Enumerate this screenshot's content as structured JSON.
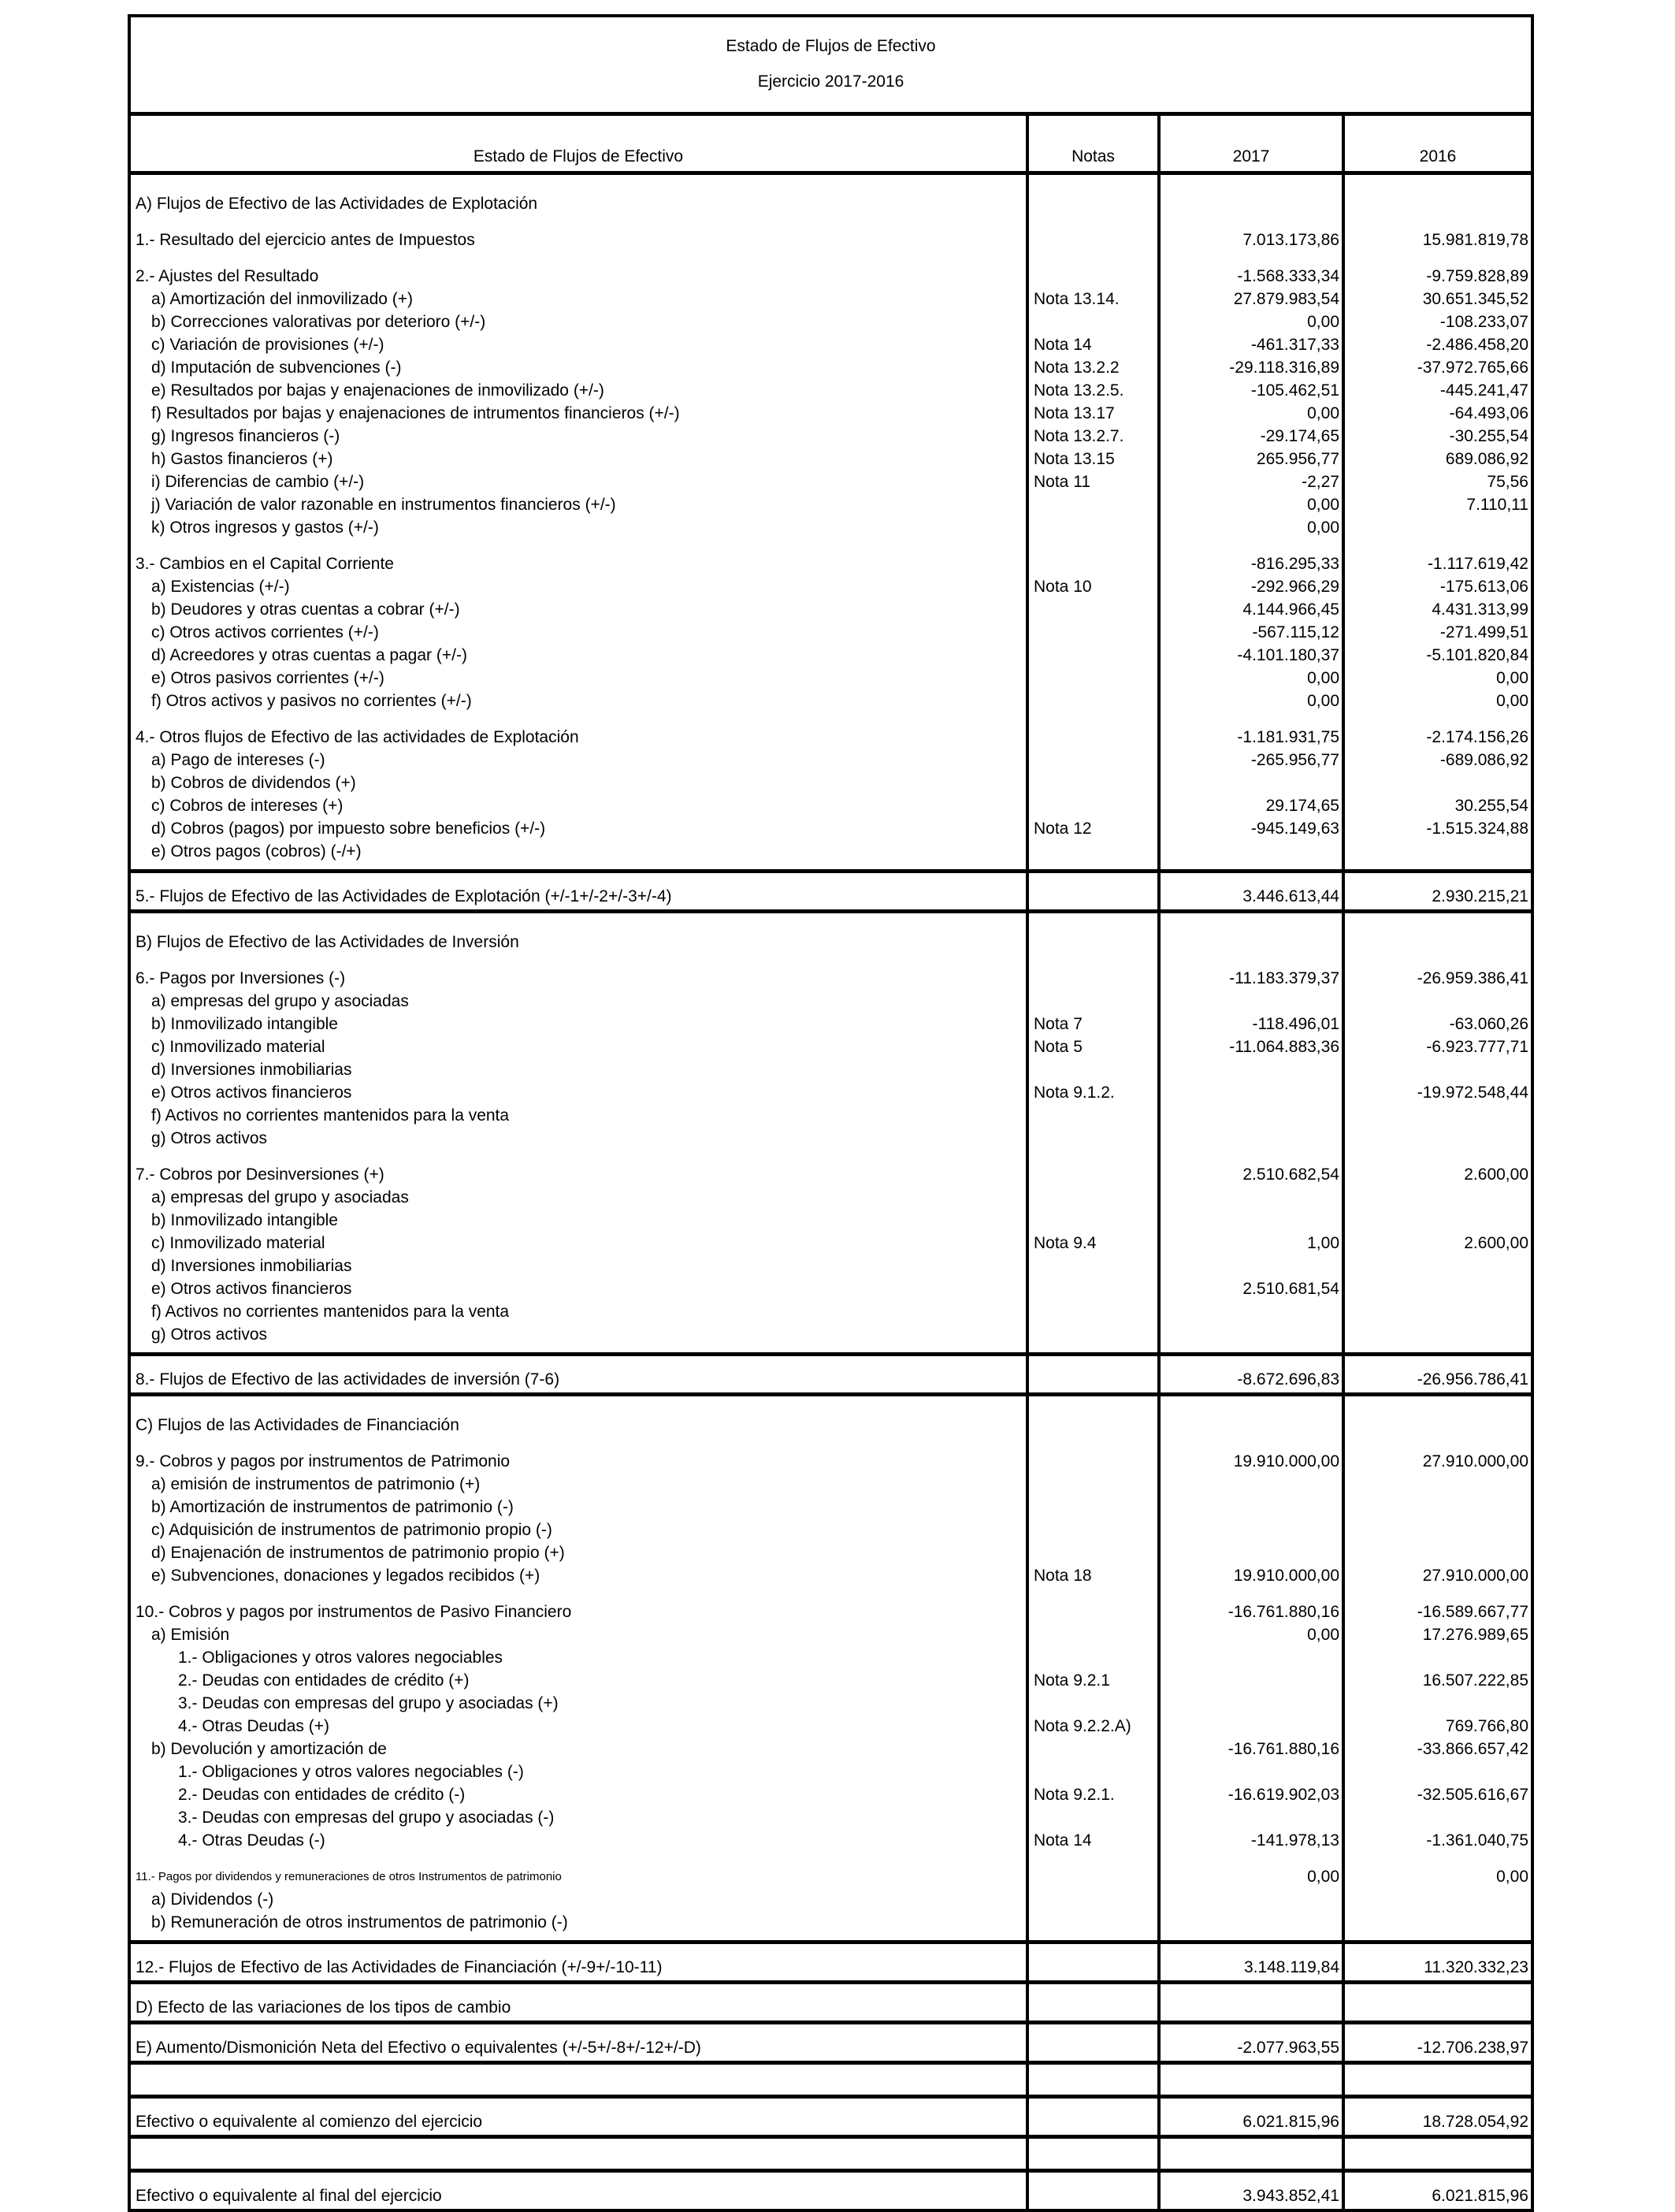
{
  "title": "Estado de Flujos de Efectivo",
  "subtitle": "Ejercicio 2017-2016",
  "header": {
    "concept": "Estado de Flujos de Efectivo",
    "notes": "Notas",
    "y2017": "2017",
    "y2016": "2016"
  },
  "blocks": [
    {
      "kind": "section",
      "groups": [
        [
          {
            "label": "A) Flujos de Efectivo de las Actividades de Explotación",
            "note": "",
            "v2017": "",
            "v2016": "",
            "level": 0
          }
        ],
        [
          {
            "label": "1.- Resultado del ejercicio antes de Impuestos",
            "note": "",
            "v2017": "7.013.173,86",
            "v2016": "15.981.819,78",
            "level": 0
          }
        ],
        [
          {
            "label": "2.- Ajustes del Resultado",
            "note": "",
            "v2017": "-1.568.333,34",
            "v2016": "-9.759.828,89",
            "level": 0
          },
          {
            "label": "a) Amortización del inmovilizado (+)",
            "note": "Nota 13.14.",
            "v2017": "27.879.983,54",
            "v2016": "30.651.345,52",
            "level": 1
          },
          {
            "label": "b) Correcciones valorativas por deterioro (+/-)",
            "note": "",
            "v2017": "0,00",
            "v2016": "-108.233,07",
            "level": 1
          },
          {
            "label": "c) Variación de provisiones (+/-)",
            "note": "Nota 14",
            "v2017": "-461.317,33",
            "v2016": "-2.486.458,20",
            "level": 1
          },
          {
            "label": "d) Imputación de subvenciones (-)",
            "note": "Nota 13.2.2",
            "v2017": "-29.118.316,89",
            "v2016": "-37.972.765,66",
            "level": 1
          },
          {
            "label": "e) Resultados por bajas y enajenaciones de inmovilizado (+/-)",
            "note": "Nota 13.2.5.",
            "v2017": "-105.462,51",
            "v2016": "-445.241,47",
            "level": 1
          },
          {
            "label": "f) Resultados por bajas y enajenaciones de intrumentos financieros (+/-)",
            "note": "Nota 13.17",
            "v2017": "0,00",
            "v2016": "-64.493,06",
            "level": 1
          },
          {
            "label": "g) Ingresos financieros (-)",
            "note": "Nota 13.2.7.",
            "v2017": "-29.174,65",
            "v2016": "-30.255,54",
            "level": 1
          },
          {
            "label": "h) Gastos financieros (+)",
            "note": "Nota 13.15",
            "v2017": "265.956,77",
            "v2016": "689.086,92",
            "level": 1
          },
          {
            "label": "i) Diferencias de cambio (+/-)",
            "note": "Nota 11",
            "v2017": "-2,27",
            "v2016": "75,56",
            "level": 1
          },
          {
            "label": "j) Variación de valor razonable en instrumentos financieros (+/-)",
            "note": "",
            "v2017": "0,00",
            "v2016": "7.110,11",
            "level": 1
          },
          {
            "label": "k) Otros ingresos y gastos (+/-)",
            "note": "",
            "v2017": "0,00",
            "v2016": "",
            "level": 1
          }
        ],
        [
          {
            "label": "3.- Cambios en el Capital Corriente",
            "note": "",
            "v2017": "-816.295,33",
            "v2016": "-1.117.619,42",
            "level": 0
          },
          {
            "label": "a) Existencias (+/-)",
            "note": "Nota 10",
            "v2017": "-292.966,29",
            "v2016": "-175.613,06",
            "level": 1
          },
          {
            "label": "b) Deudores y otras cuentas a cobrar (+/-)",
            "note": "",
            "v2017": "4.144.966,45",
            "v2016": "4.431.313,99",
            "level": 1
          },
          {
            "label": "c) Otros activos corrientes (+/-)",
            "note": "",
            "v2017": "-567.115,12",
            "v2016": "-271.499,51",
            "level": 1
          },
          {
            "label": "d) Acreedores y otras cuentas a pagar (+/-)",
            "note": "",
            "v2017": "-4.101.180,37",
            "v2016": "-5.101.820,84",
            "level": 1
          },
          {
            "label": "e) Otros pasivos corrientes (+/-)",
            "note": "",
            "v2017": "0,00",
            "v2016": "0,00",
            "level": 1
          },
          {
            "label": "f) Otros activos y pasivos no corrientes (+/-)",
            "note": "",
            "v2017": "0,00",
            "v2016": "0,00",
            "level": 1
          }
        ],
        [
          {
            "label": "4.- Otros flujos de Efectivo de las actividades de Explotación",
            "note": "",
            "v2017": "-1.181.931,75",
            "v2016": "-2.174.156,26",
            "level": 0
          },
          {
            "label": "a) Pago de intereses (-)",
            "note": "",
            "v2017": "-265.956,77",
            "v2016": "-689.086,92",
            "level": 1
          },
          {
            "label": "b) Cobros de dividendos (+)",
            "note": "",
            "v2017": "",
            "v2016": "",
            "level": 1
          },
          {
            "label": "c) Cobros de intereses (+)",
            "note": "",
            "v2017": "29.174,65",
            "v2016": "30.255,54",
            "level": 1
          },
          {
            "label": "d) Cobros (pagos) por impuesto sobre beneficios (+/-)",
            "note": "Nota 12",
            "v2017": "-945.149,63",
            "v2016": "-1.515.324,88",
            "level": 1
          },
          {
            "label": "e) Otros pagos (cobros) (-/+)",
            "note": "",
            "v2017": "",
            "v2016": "",
            "level": 1
          }
        ]
      ]
    },
    {
      "kind": "single",
      "row": {
        "label": "5.- Flujos de Efectivo de las Actividades de Explotación (+/-1+/-2+/-3+/-4)",
        "note": "",
        "v2017": "3.446.613,44",
        "v2016": "2.930.215,21",
        "level": 0
      }
    },
    {
      "kind": "section",
      "groups": [
        [
          {
            "label": "B) Flujos de Efectivo de las Actividades de Inversión",
            "note": "",
            "v2017": "",
            "v2016": "",
            "level": 0
          }
        ],
        [
          {
            "label": "6.-  Pagos por Inversiones (-)",
            "note": "",
            "v2017": "-11.183.379,37",
            "v2016": "-26.959.386,41",
            "level": 0
          },
          {
            "label": "a) empresas del grupo y asociadas",
            "note": "",
            "v2017": "",
            "v2016": "",
            "level": 1
          },
          {
            "label": "b) Inmovilizado intangible",
            "note": "Nota 7",
            "v2017": "-118.496,01",
            "v2016": "-63.060,26",
            "level": 1
          },
          {
            "label": "c) Inmovilizado material",
            "note": "Nota 5",
            "v2017": "-11.064.883,36",
            "v2016": "-6.923.777,71",
            "level": 1
          },
          {
            "label": "d) Inversiones inmobiliarias",
            "note": "",
            "v2017": "",
            "v2016": "",
            "level": 1
          },
          {
            "label": "e) Otros activos financieros",
            "note": "Nota 9.1.2.",
            "v2017": "",
            "v2016": "-19.972.548,44",
            "level": 1
          },
          {
            "label": "f) Activos no corrientes mantenidos para la venta",
            "note": "",
            "v2017": "",
            "v2016": "",
            "level": 1
          },
          {
            "label": "g) Otros activos",
            "note": "",
            "v2017": "",
            "v2016": "",
            "level": 1
          }
        ],
        [
          {
            "label": "7.- Cobros por Desinversiones (+)",
            "note": "",
            "v2017": "2.510.682,54",
            "v2016": "2.600,00",
            "level": 0
          },
          {
            "label": "a) empresas del grupo y asociadas",
            "note": "",
            "v2017": "",
            "v2016": "",
            "level": 1
          },
          {
            "label": "b) Inmovilizado intangible",
            "note": "",
            "v2017": "",
            "v2016": "",
            "level": 1
          },
          {
            "label": "c) Inmovilizado material",
            "note": "Nota 9.4",
            "v2017": "1,00",
            "v2016": "2.600,00",
            "level": 1
          },
          {
            "label": "d) Inversiones inmobiliarias",
            "note": "",
            "v2017": "",
            "v2016": "",
            "level": 1
          },
          {
            "label": "e) Otros activos financieros",
            "note": "",
            "v2017": "2.510.681,54",
            "v2016": "",
            "level": 1
          },
          {
            "label": "f) Activos no corrientes mantenidos para la venta",
            "note": "",
            "v2017": "",
            "v2016": "",
            "level": 1
          },
          {
            "label": "g) Otros activos",
            "note": "",
            "v2017": "",
            "v2016": "",
            "level": 1
          }
        ]
      ]
    },
    {
      "kind": "single",
      "row": {
        "label": "8.- Flujos de Efectivo de las actividades de inversión (7-6)",
        "note": "",
        "v2017": "-8.672.696,83",
        "v2016": "-26.956.786,41",
        "level": 0
      }
    },
    {
      "kind": "section",
      "groups": [
        [
          {
            "label": "C) Flujos de las Actividades de Financiación",
            "note": "",
            "v2017": "",
            "v2016": "",
            "level": 0
          }
        ],
        [
          {
            "label": "9.- Cobros y pagos por instrumentos de Patrimonio",
            "note": "",
            "v2017": "19.910.000,00",
            "v2016": "27.910.000,00",
            "level": 0
          },
          {
            "label": "a) emisión de instrumentos de patrimonio (+)",
            "note": "",
            "v2017": "",
            "v2016": "",
            "level": 1
          },
          {
            "label": "b) Amortización de instrumentos de patrimonio (-)",
            "note": "",
            "v2017": "",
            "v2016": "",
            "level": 1
          },
          {
            "label": "c) Adquisición de instrumentos de patrimonio propio (-)",
            "note": "",
            "v2017": "",
            "v2016": "",
            "level": 1
          },
          {
            "label": "d) Enajenación de instrumentos de patrimonio propio (+)",
            "note": "",
            "v2017": "",
            "v2016": "",
            "level": 1
          },
          {
            "label": "e) Subvenciones, donaciones y legados recibidos (+)",
            "note": "Nota 18",
            "v2017": "19.910.000,00",
            "v2016": "27.910.000,00",
            "level": 1
          }
        ],
        [
          {
            "label": "10.- Cobros y pagos por instrumentos de Pasivo Financiero",
            "note": "",
            "v2017": "-16.761.880,16",
            "v2016": "-16.589.667,77",
            "level": 0
          },
          {
            "label": "a) Emisión",
            "note": "",
            "v2017": "0,00",
            "v2016": "17.276.989,65",
            "level": 1
          },
          {
            "label": "1.- Obligaciones y otros valores negociables",
            "note": "",
            "v2017": "",
            "v2016": "",
            "level": 2
          },
          {
            "label": "2.- Deudas con entidades de crédito (+)",
            "note": "Nota 9.2.1",
            "v2017": "",
            "v2016": "16.507.222,85",
            "level": 2
          },
          {
            "label": "3.- Deudas con empresas del grupo y asociadas (+)",
            "note": "",
            "v2017": "",
            "v2016": "",
            "level": 2
          },
          {
            "label": "4.- Otras Deudas (+)",
            "note": "Nota 9.2.2.A)",
            "v2017": "",
            "v2016": "769.766,80",
            "level": 2
          },
          {
            "label": "b) Devolución y amortización de",
            "note": "",
            "v2017": "-16.761.880,16",
            "v2016": "-33.866.657,42",
            "level": 1
          },
          {
            "label": "1.- Obligaciones y otros valores negociables (-)",
            "note": "",
            "v2017": "",
            "v2016": "",
            "level": 2
          },
          {
            "label": "2.- Deudas con entidades de crédito (-)",
            "note": "Nota 9.2.1.",
            "v2017": "-16.619.902,03",
            "v2016": "-32.505.616,67",
            "level": 2
          },
          {
            "label": "3.- Deudas con empresas del grupo y asociadas (-)",
            "note": "",
            "v2017": "",
            "v2016": "",
            "level": 2
          },
          {
            "label": "4.- Otras Deudas (-)",
            "note": "Nota 14",
            "v2017": "-141.978,13",
            "v2016": "-1.361.040,75",
            "level": 2
          }
        ],
        [
          {
            "label": "11.- Pagos por dividendos y remuneraciones de otros Instrumentos de patrimonio",
            "note": "",
            "v2017": "0,00",
            "v2016": "0,00",
            "level": 0,
            "fine_print": true
          },
          {
            "label": "a) Dividendos (-)",
            "note": "",
            "v2017": "",
            "v2016": "",
            "level": 1
          },
          {
            "label": "b) Remuneración de otros instrumentos de patrimonio (-)",
            "note": "",
            "v2017": "",
            "v2016": "",
            "level": 1
          }
        ]
      ]
    },
    {
      "kind": "single",
      "row": {
        "label": "12.- Flujos de Efectivo de las Actividades de Financiación (+/-9+/-10-11)",
        "note": "",
        "v2017": "3.148.119,84",
        "v2016": "11.320.332,23",
        "level": 0
      }
    },
    {
      "kind": "single",
      "row": {
        "label": "D) Efecto de las variaciones de los tipos de cambio",
        "note": "",
        "v2017": "",
        "v2016": "",
        "level": 0
      }
    },
    {
      "kind": "single",
      "row": {
        "label": "E) Aumento/Dismonición Neta del Efectivo o equivalentes (+/-5+/-8+/-12+/-D)",
        "note": "",
        "v2017": "-2.077.963,55",
        "v2016": "-12.706.238,97",
        "level": 0
      }
    },
    {
      "kind": "blank"
    },
    {
      "kind": "single",
      "row": {
        "label": "Efectivo o equivalente al comienzo del ejercicio",
        "note": "",
        "v2017": "6.021.815,96",
        "v2016": "18.728.054,92",
        "level": 0
      }
    },
    {
      "kind": "blank"
    },
    {
      "kind": "single",
      "row": {
        "label": "Efectivo o equivalente al final del ejercicio",
        "note": "",
        "v2017": "3.943.852,41",
        "v2016": "6.021.815,96",
        "level": 0
      }
    }
  ]
}
